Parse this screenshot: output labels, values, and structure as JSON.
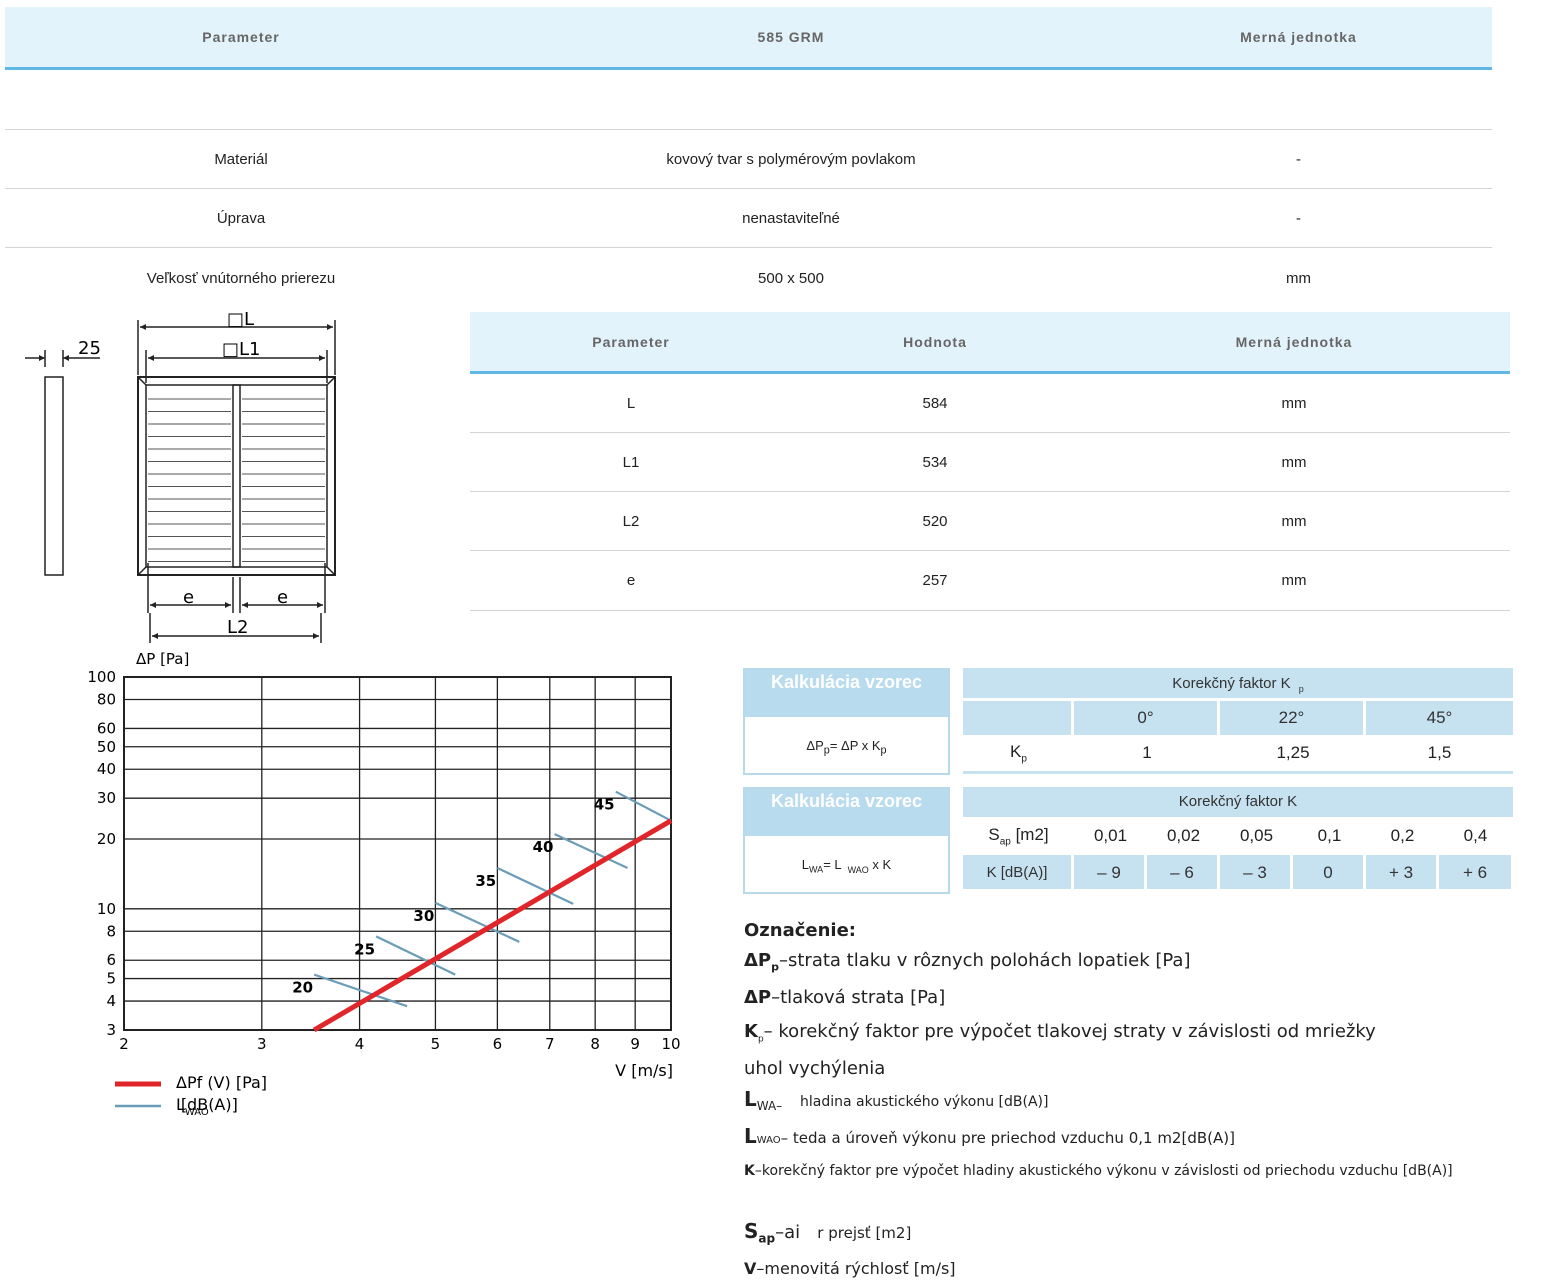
{
  "table1": {
    "headers": [
      "Parameter",
      "585 GRM",
      "Merná jednotka"
    ],
    "rows": [
      [
        "Materiál",
        "kovový tvar s polymérovým povlakom",
        "-"
      ],
      [
        "Úprava",
        "nenastaviteľné",
        "-"
      ],
      [
        "Veľkosť vnútorného prierezu",
        "500 x 500",
        "mm"
      ]
    ]
  },
  "table2": {
    "headers": [
      "Parameter",
      "Hodnota",
      "Merná jednotka"
    ],
    "rows": [
      [
        "L",
        "584",
        "mm"
      ],
      [
        "L1",
        "534",
        "mm"
      ],
      [
        "L2",
        "520",
        "mm"
      ],
      [
        "e",
        "257",
        "mm"
      ]
    ]
  },
  "drawing": {
    "dim_25": "25",
    "dim_L": "□L",
    "dim_L1": "□L1",
    "dim_e": "e",
    "dim_L2": "L2"
  },
  "chart_data": {
    "type": "line",
    "x_scale": "log",
    "y_scale": "log",
    "xlim": [
      2,
      10
    ],
    "ylim": [
      3,
      100
    ],
    "x_ticks": [
      "2",
      "3",
      "4",
      "5",
      "6",
      "7",
      "8",
      "9",
      "10"
    ],
    "y_ticks": [
      "3",
      "4",
      "5",
      "6",
      "8",
      "10",
      "20",
      "30",
      "40",
      "50",
      "60",
      "80",
      "100"
    ],
    "ylabel": "ΔP [Pa]",
    "xlabel": "V [m/s]",
    "grid": true,
    "series": [
      {
        "name": "ΔPf (V) [Pa]",
        "color": "#e0262b",
        "x": [
          3.5,
          10
        ],
        "y": [
          3,
          24
        ]
      }
    ],
    "noise_lines": [
      {
        "label": "20",
        "x": [
          3.5,
          4.6
        ],
        "y": [
          5.2,
          3.8
        ]
      },
      {
        "label": "25",
        "x": [
          4.2,
          5.3
        ],
        "y": [
          7.6,
          5.2
        ]
      },
      {
        "label": "30",
        "x": [
          5.0,
          6.4
        ],
        "y": [
          10.6,
          7.2
        ]
      },
      {
        "label": "35",
        "x": [
          6.0,
          7.5
        ],
        "y": [
          15.0,
          10.5
        ]
      },
      {
        "label": "40",
        "x": [
          7.1,
          8.8
        ],
        "y": [
          21.0,
          15.0
        ]
      },
      {
        "label": "45",
        "x": [
          8.5,
          10.0
        ],
        "y": [
          32.0,
          24.0
        ]
      }
    ],
    "legend": [
      {
        "label": "ΔPf (V) [Pa]",
        "color": "#e0262b"
      },
      {
        "label": "L",
        "sub": "WAO",
        "suffix": "[dB(A)]",
        "color": "#6b9cb8"
      }
    ]
  },
  "calc1": {
    "head": "Kalkulácia vzorec",
    "formula_main": "ΔP",
    "formula_sub": "p",
    "formula_rest": "= ΔP x K",
    "formula_sub2": "p"
  },
  "calc2": {
    "head": "Kalkulácia vzorec",
    "formula_main": "L",
    "formula_sub": "WA",
    "formula_rest": "= L",
    "formula_sub2": "WAO",
    "formula_tail": " x K"
  },
  "kp_table": {
    "title": "Korekčný faktor K",
    "title_sub": "p",
    "angles": [
      "0°",
      "22°",
      "45°"
    ],
    "row_label": "K",
    "row_label_sub": "p",
    "values": [
      "1",
      "1,25",
      "1,5"
    ]
  },
  "k_table": {
    "title": "Korekčný faktor K",
    "sap_label": "S",
    "sap_sub": "ap",
    "sap_unit": "[m2]",
    "sap_values": [
      "0,01",
      "0,02",
      "0,05",
      "0,1",
      "0,2",
      "0,4"
    ],
    "k_label": "K [dB(A)]",
    "k_values": [
      "– 9",
      "– 6",
      "– 3",
      "0",
      "+ 3",
      "+ 6"
    ]
  },
  "legend_block": {
    "title": "Označenie:",
    "l1_b": "ΔP",
    "l1_sub": "p",
    "l1_t": "–strata tlaku v rôznych polohách lopatiek [Pa]",
    "l2_b": "ΔP",
    "l2_t": "–tlaková strata [Pa]",
    "l3_b": "K",
    "l3_sub": "p",
    "l3_t": "– korekčný faktor pre výpočet tlakovej straty v závislosti od mriežky",
    "l3b_t": "uhol vychýlenia",
    "l4_b": "L",
    "l4_sub": "WA–",
    "l4_t": "hladina akustického výkonu [dB(A)]",
    "l5_b": "L",
    "l5_sub": "WAO",
    "l5_t": "– teda a úroveň výkonu pre priechod vzduchu 0,1 m2[dB(A)]",
    "l6_b": "K",
    "l6_t": "–korekčný faktor pre výpočet hladiny akustického výkonu v závislosti od priechodu vzduchu [dB(A)]",
    "l7_b": "S",
    "l7_sub": "ap",
    "l7_t1": "–ai",
    "l7_t2": "r prejsť [m2]",
    "l8_b": "V",
    "l8_t": "–menovitá rýchlosť [m/s]"
  }
}
